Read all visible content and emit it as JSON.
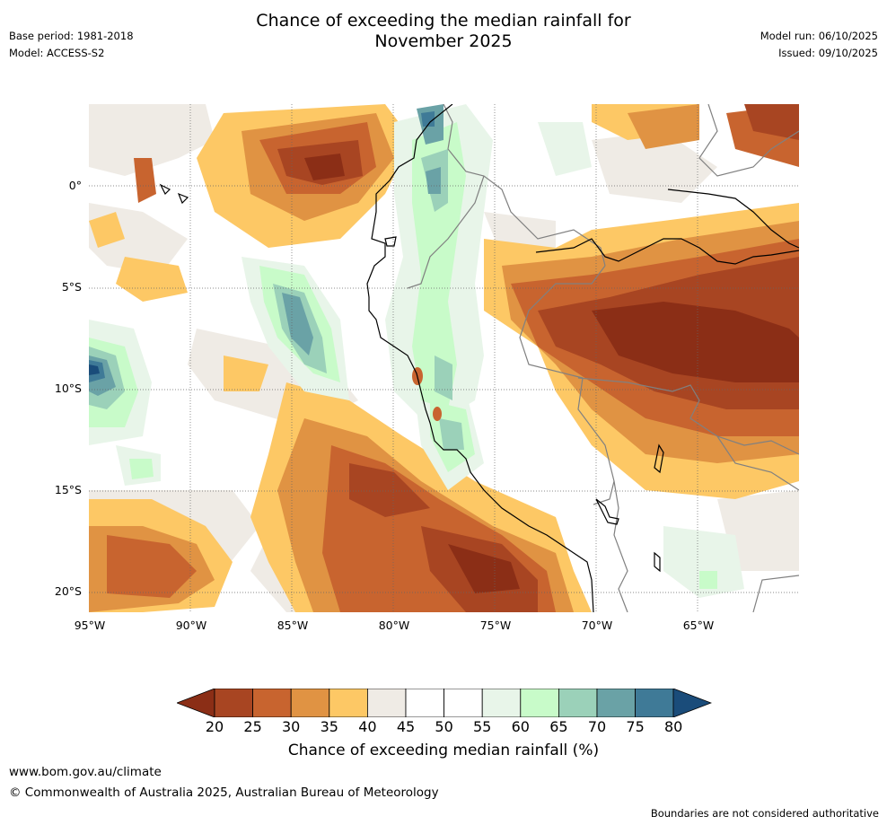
{
  "title_line1": "Chance of exceeding the median rainfall for",
  "title_line2": "November 2025",
  "base_period": "Base period: 1981-2018",
  "model": "Model: ACCESS-S2",
  "model_run": "Model run: 06/10/2025",
  "issued": "Issued: 09/10/2025",
  "lat_labels": [
    "0°",
    "5°S",
    "10°S",
    "15°S",
    "20°S"
  ],
  "lon_labels": [
    "95°W",
    "90°W",
    "85°W",
    "80°W",
    "75°W",
    "70°W",
    "65°W"
  ],
  "colorbar": {
    "ticks": [
      "20",
      "25",
      "30",
      "35",
      "40",
      "45",
      "50",
      "55",
      "60",
      "65",
      "70",
      "75",
      "80"
    ],
    "colors": [
      "#8b2e16",
      "#a84522",
      "#c8642f",
      "#e09343",
      "#fdc865",
      "#efebe5",
      "#ffffff",
      "#ffffff",
      "#e8f5e9",
      "#c8fbc9",
      "#9bd1b9",
      "#6aa2a6",
      "#3f7a97",
      "#1a4c7a"
    ],
    "label": "Chance of exceeding median rainfall (%)"
  },
  "footer_url": "www.bom.gov.au/climate",
  "footer_copyright": "© Commonwealth of Australia 2025, Australian Bureau of Meteorology",
  "footer_note": "Boundaries are not considered authoritative"
}
